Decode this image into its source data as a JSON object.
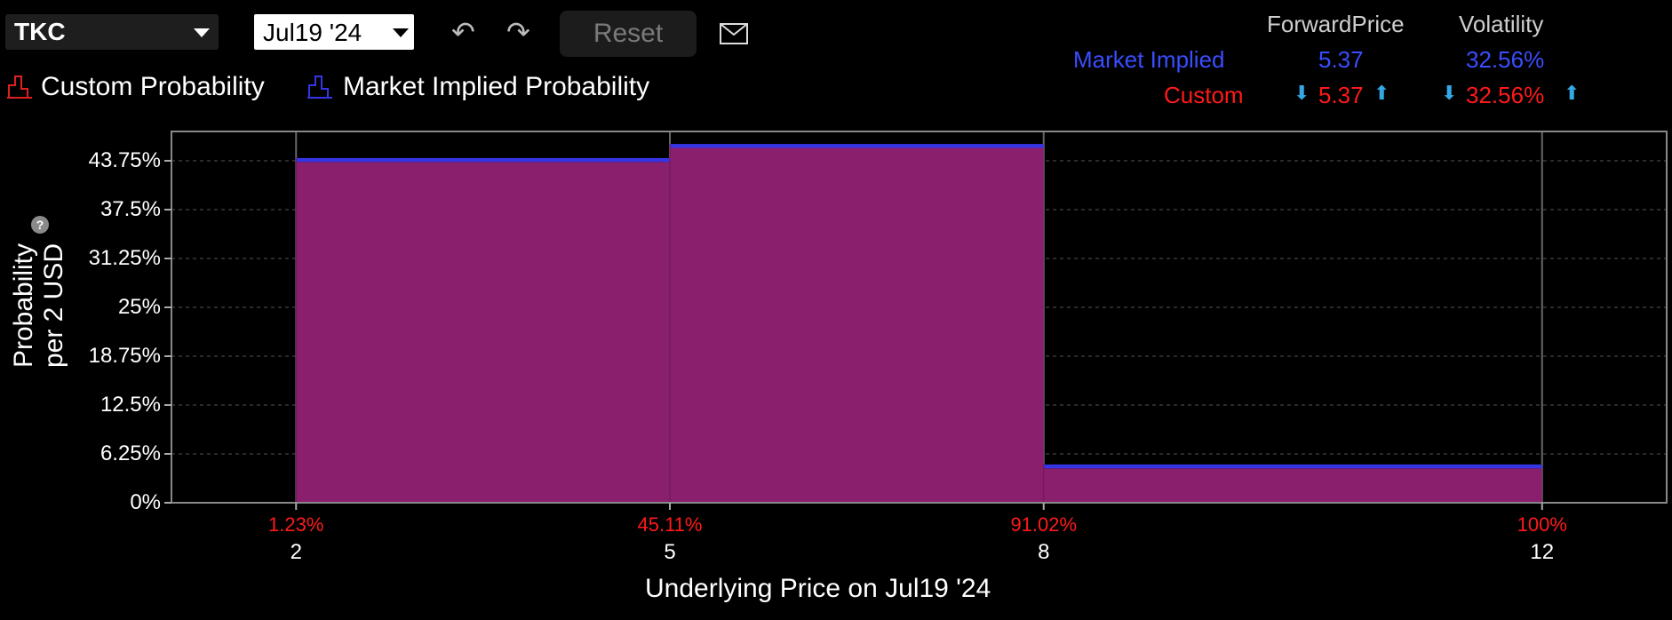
{
  "toolbar": {
    "ticker": "TKC",
    "expiry": "Jul19 '24",
    "reset_label": "Reset"
  },
  "legend": {
    "custom": "Custom Probability",
    "market": "Market Implied Probability"
  },
  "summary": {
    "col_forward": "ForwardPrice",
    "col_vol": "Volatility",
    "market_label": "Market Implied",
    "market_forward": "5.37",
    "market_vol": "32.56%",
    "custom_label": "Custom",
    "custom_forward": "5.37",
    "custom_vol": "32.56%"
  },
  "chart_data": {
    "type": "bar",
    "xlabel": "Underlying Price on Jul19 '24",
    "ylabel_line1": "Probability",
    "ylabel_line2": "per 2 USD",
    "ylim": [
      0,
      47.5
    ],
    "xlim": [
      1,
      13
    ],
    "yticks": [
      "0%",
      "6.25%",
      "12.5%",
      "18.75%",
      "25%",
      "31.25%",
      "37.5%",
      "43.75%"
    ],
    "ytick_values": [
      0,
      6.25,
      12.5,
      18.75,
      25,
      31.25,
      37.5,
      43.75
    ],
    "xticks": [
      "2",
      "5",
      "8",
      "12"
    ],
    "xtick_values": [
      2,
      5,
      8,
      12
    ],
    "cumulative_labels": [
      "1.23%",
      "45.11%",
      "91.02%",
      "100%"
    ],
    "bins": [
      {
        "from": 2,
        "to": 5,
        "custom": 43.6,
        "market": 44.1
      },
      {
        "from": 5,
        "to": 8,
        "custom": 45.4,
        "market": 45.9
      },
      {
        "from": 8,
        "to": 12,
        "custom": 4.4,
        "market": 4.9
      }
    ],
    "colors": {
      "custom_fill": "#8a1f6e",
      "market_line": "#3535e6",
      "custom_legend": "#e02020"
    }
  }
}
